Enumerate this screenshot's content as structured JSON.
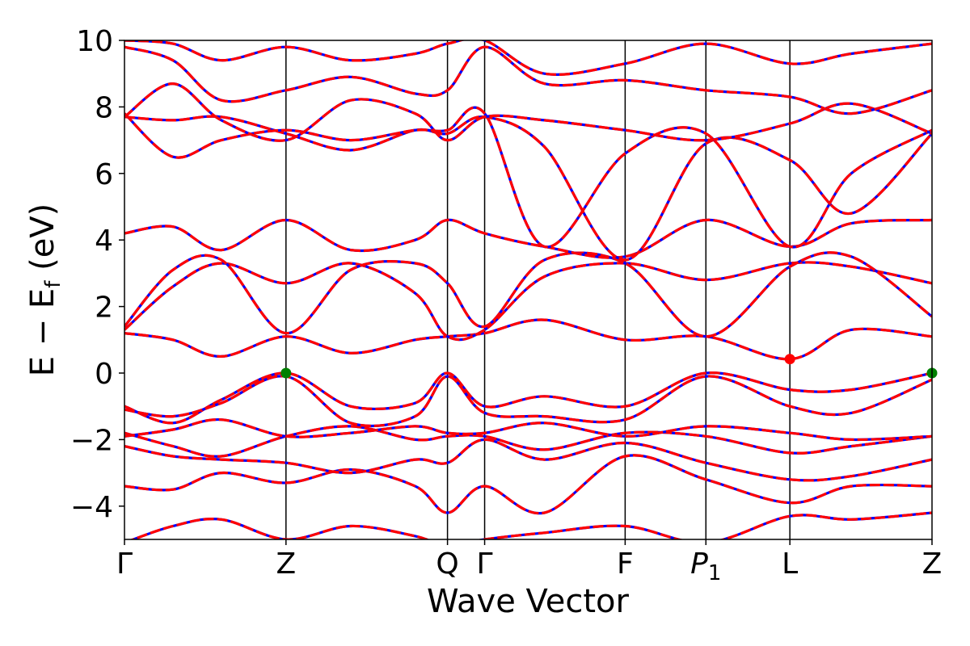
{
  "chart_data": {
    "type": "line",
    "title": "",
    "xlabel": "Wave Vector",
    "ylabel": "E − E",
    "ylabel_sub": "f",
    "ylabel_unit": " (eV)",
    "ylim": [
      -5,
      10
    ],
    "yticks": [
      -4,
      -2,
      0,
      2,
      4,
      6,
      8,
      10
    ],
    "ytick_labels": [
      "−4",
      "−2",
      "0",
      "2",
      "4",
      "6",
      "8",
      "10"
    ],
    "kpoints": [
      {
        "label": "Γ",
        "x": 0.0
      },
      {
        "label": "Z",
        "x": 1.0
      },
      {
        "label": "Q",
        "x": 2.0
      },
      {
        "label": "Γ",
        "x": 2.23
      },
      {
        "label": "F",
        "x": 3.1
      },
      {
        "label": "P",
        "sub": "1",
        "x": 3.6
      },
      {
        "label": "L",
        "x": 4.12
      },
      {
        "label": "Z",
        "x": 5.0
      }
    ],
    "xlim": [
      0,
      5.0
    ],
    "colors": {
      "solid": "#ff0000",
      "dashed": "#0000ff",
      "vbm": "#008000",
      "cbm": "#ff0000",
      "vline": "#000000"
    },
    "markers": [
      {
        "name": "vbm",
        "x": 1.0,
        "y": 0.0
      },
      {
        "name": "vbm",
        "x": 5.0,
        "y": 0.0
      },
      {
        "name": "cbm",
        "x": 4.12,
        "y": 0.42
      }
    ],
    "bands": [
      {
        "name": "band",
        "points": [
          [
            0,
            -5.1
          ],
          [
            0.3,
            -4.6
          ],
          [
            0.6,
            -4.4
          ],
          [
            1.0,
            -5.0
          ],
          [
            1.4,
            -4.6
          ],
          [
            1.8,
            -4.9
          ],
          [
            2.0,
            -5.2
          ],
          [
            2.23,
            -5.0
          ],
          [
            2.6,
            -4.8
          ],
          [
            3.1,
            -4.6
          ],
          [
            3.6,
            -5.1
          ],
          [
            4.12,
            -4.3
          ],
          [
            4.5,
            -4.4
          ],
          [
            5.0,
            -4.2
          ]
        ]
      },
      {
        "name": "band",
        "points": [
          [
            0,
            -3.4
          ],
          [
            0.3,
            -3.5
          ],
          [
            0.6,
            -3.0
          ],
          [
            1.0,
            -3.3
          ],
          [
            1.4,
            -2.9
          ],
          [
            1.8,
            -3.4
          ],
          [
            2.0,
            -4.2
          ],
          [
            2.23,
            -3.4
          ],
          [
            2.6,
            -4.2
          ],
          [
            3.1,
            -2.5
          ],
          [
            3.6,
            -3.2
          ],
          [
            4.12,
            -3.9
          ],
          [
            4.5,
            -3.4
          ],
          [
            5.0,
            -3.4
          ]
        ]
      },
      {
        "name": "band",
        "points": [
          [
            0,
            -2.2
          ],
          [
            0.3,
            -2.5
          ],
          [
            0.6,
            -2.6
          ],
          [
            1.0,
            -2.7
          ],
          [
            1.4,
            -3.0
          ],
          [
            1.8,
            -2.6
          ],
          [
            2.0,
            -2.7
          ],
          [
            2.23,
            -2.0
          ],
          [
            2.6,
            -2.6
          ],
          [
            3.1,
            -2.1
          ],
          [
            3.6,
            -2.7
          ],
          [
            4.12,
            -3.2
          ],
          [
            4.5,
            -3.1
          ],
          [
            5.0,
            -2.6
          ]
        ]
      },
      {
        "name": "band",
        "points": [
          [
            0,
            -1.8
          ],
          [
            0.3,
            -2.2
          ],
          [
            0.6,
            -2.5
          ],
          [
            1.0,
            -1.9
          ],
          [
            1.4,
            -1.6
          ],
          [
            1.8,
            -2.0
          ],
          [
            2.0,
            -1.9
          ],
          [
            2.23,
            -1.9
          ],
          [
            2.6,
            -2.3
          ],
          [
            3.1,
            -1.8
          ],
          [
            3.6,
            -1.9
          ],
          [
            4.12,
            -2.4
          ],
          [
            4.5,
            -2.2
          ],
          [
            5.0,
            -1.9
          ]
        ]
      },
      {
        "name": "band",
        "points": [
          [
            0,
            -1.9
          ],
          [
            0.3,
            -1.7
          ],
          [
            0.6,
            -1.4
          ],
          [
            1.0,
            -1.9
          ],
          [
            1.4,
            -1.8
          ],
          [
            1.8,
            -1.6
          ],
          [
            2.0,
            -1.8
          ],
          [
            2.23,
            -1.8
          ],
          [
            2.6,
            -1.5
          ],
          [
            3.1,
            -1.9
          ],
          [
            3.6,
            -1.6
          ],
          [
            4.12,
            -1.8
          ],
          [
            4.5,
            -2.0
          ],
          [
            5.0,
            -1.9
          ]
        ]
      },
      {
        "name": "band",
        "points": [
          [
            0,
            -1.0
          ],
          [
            0.3,
            -1.5
          ],
          [
            0.6,
            -0.8
          ],
          [
            1.0,
            0.0
          ],
          [
            1.4,
            -1.0
          ],
          [
            1.8,
            -0.9
          ],
          [
            2.0,
            0.0
          ],
          [
            2.23,
            -1.0
          ],
          [
            2.6,
            -0.7
          ],
          [
            3.1,
            -1.0
          ],
          [
            3.6,
            0.0
          ],
          [
            4.12,
            -0.5
          ],
          [
            4.5,
            -0.5
          ],
          [
            5.0,
            0.0
          ]
        ]
      },
      {
        "name": "band",
        "points": [
          [
            0,
            -1.1
          ],
          [
            0.3,
            -1.3
          ],
          [
            0.6,
            -0.9
          ],
          [
            1.0,
            -0.1
          ],
          [
            1.4,
            -1.5
          ],
          [
            1.8,
            -1.3
          ],
          [
            2.0,
            -0.1
          ],
          [
            2.23,
            -1.2
          ],
          [
            2.6,
            -1.3
          ],
          [
            3.1,
            -1.4
          ],
          [
            3.6,
            -0.1
          ],
          [
            4.12,
            -1.0
          ],
          [
            4.5,
            -1.2
          ],
          [
            5.0,
            -0.2
          ]
        ]
      },
      {
        "name": "band",
        "points": [
          [
            0,
            1.2
          ],
          [
            0.3,
            1.0
          ],
          [
            0.6,
            0.5
          ],
          [
            1.0,
            1.1
          ],
          [
            1.4,
            0.6
          ],
          [
            1.8,
            1.0
          ],
          [
            2.0,
            1.1
          ],
          [
            2.23,
            1.2
          ],
          [
            2.6,
            1.6
          ],
          [
            3.1,
            1.0
          ],
          [
            3.6,
            1.1
          ],
          [
            4.12,
            0.42
          ],
          [
            4.5,
            1.3
          ],
          [
            5.0,
            1.1
          ]
        ]
      },
      {
        "name": "band",
        "points": [
          [
            0,
            1.3
          ],
          [
            0.3,
            2.6
          ],
          [
            0.6,
            3.3
          ],
          [
            1.0,
            2.7
          ],
          [
            1.4,
            3.3
          ],
          [
            1.8,
            2.4
          ],
          [
            2.0,
            1.1
          ],
          [
            2.23,
            1.3
          ],
          [
            2.6,
            2.9
          ],
          [
            3.1,
            3.3
          ],
          [
            3.6,
            2.8
          ],
          [
            4.12,
            3.3
          ],
          [
            4.5,
            3.2
          ],
          [
            5.0,
            2.7
          ]
        ]
      },
      {
        "name": "band",
        "points": [
          [
            0,
            1.4
          ],
          [
            0.3,
            3.1
          ],
          [
            0.6,
            3.4
          ],
          [
            1.0,
            1.2
          ],
          [
            1.4,
            3.1
          ],
          [
            1.8,
            3.3
          ],
          [
            2.0,
            2.7
          ],
          [
            2.23,
            1.4
          ],
          [
            2.6,
            3.4
          ],
          [
            3.1,
            3.3
          ],
          [
            3.6,
            1.1
          ],
          [
            4.12,
            3.2
          ],
          [
            4.5,
            3.5
          ],
          [
            5.0,
            1.7
          ]
        ]
      },
      {
        "name": "band",
        "points": [
          [
            0,
            4.2
          ],
          [
            0.3,
            4.4
          ],
          [
            0.6,
            3.7
          ],
          [
            1.0,
            4.6
          ],
          [
            1.4,
            3.7
          ],
          [
            1.8,
            4.0
          ],
          [
            2.0,
            4.6
          ],
          [
            2.23,
            4.2
          ],
          [
            2.6,
            3.8
          ],
          [
            3.1,
            3.5
          ],
          [
            3.6,
            4.6
          ],
          [
            4.12,
            3.8
          ],
          [
            4.5,
            4.5
          ],
          [
            5.0,
            4.6
          ]
        ]
      },
      {
        "name": "band",
        "points": [
          [
            0,
            7.7
          ],
          [
            0.3,
            7.6
          ],
          [
            0.6,
            7.7
          ],
          [
            1.0,
            7.2
          ],
          [
            1.4,
            6.7
          ],
          [
            1.8,
            7.3
          ],
          [
            2.0,
            7.2
          ],
          [
            2.23,
            7.7
          ],
          [
            2.6,
            6.8
          ],
          [
            3.1,
            3.4
          ],
          [
            3.6,
            6.9
          ],
          [
            4.12,
            6.4
          ],
          [
            4.5,
            4.8
          ],
          [
            5.0,
            7.2
          ]
        ]
      },
      {
        "name": "band",
        "points": [
          [
            0,
            7.8
          ],
          [
            0.3,
            6.5
          ],
          [
            0.6,
            7.0
          ],
          [
            1.0,
            7.3
          ],
          [
            1.4,
            7.0
          ],
          [
            1.8,
            7.3
          ],
          [
            2.0,
            7.3
          ],
          [
            2.23,
            7.8
          ],
          [
            2.6,
            3.8
          ],
          [
            3.1,
            6.6
          ],
          [
            3.6,
            7.2
          ],
          [
            4.12,
            3.8
          ],
          [
            4.5,
            6.0
          ],
          [
            5.0,
            7.3
          ]
        ]
      },
      {
        "name": "band",
        "points": [
          [
            0,
            7.7
          ],
          [
            0.3,
            8.7
          ],
          [
            0.6,
            7.6
          ],
          [
            1.0,
            7.0
          ],
          [
            1.4,
            8.2
          ],
          [
            1.8,
            7.8
          ],
          [
            2.0,
            7.0
          ],
          [
            2.23,
            7.7
          ],
          [
            2.6,
            7.6
          ],
          [
            3.1,
            7.3
          ],
          [
            3.6,
            7.0
          ],
          [
            4.12,
            7.5
          ],
          [
            4.5,
            8.1
          ],
          [
            5.0,
            7.2
          ]
        ]
      },
      {
        "name": "band",
        "points": [
          [
            0,
            9.8
          ],
          [
            0.3,
            9.4
          ],
          [
            0.6,
            8.2
          ],
          [
            1.0,
            8.5
          ],
          [
            1.4,
            8.9
          ],
          [
            1.8,
            8.4
          ],
          [
            2.0,
            8.5
          ],
          [
            2.23,
            9.8
          ],
          [
            2.6,
            8.7
          ],
          [
            3.1,
            8.8
          ],
          [
            3.6,
            8.5
          ],
          [
            4.12,
            8.3
          ],
          [
            4.5,
            7.8
          ],
          [
            5.0,
            8.5
          ]
        ]
      },
      {
        "name": "band",
        "points": [
          [
            0,
            10.0
          ],
          [
            0.3,
            9.9
          ],
          [
            0.6,
            9.4
          ],
          [
            1.0,
            9.8
          ],
          [
            1.4,
            9.4
          ],
          [
            1.8,
            9.6
          ],
          [
            2.0,
            9.9
          ],
          [
            2.23,
            10.0
          ],
          [
            2.6,
            9.0
          ],
          [
            3.1,
            9.3
          ],
          [
            3.6,
            9.9
          ],
          [
            4.12,
            9.3
          ],
          [
            4.5,
            9.6
          ],
          [
            5.0,
            9.9
          ]
        ]
      }
    ]
  }
}
